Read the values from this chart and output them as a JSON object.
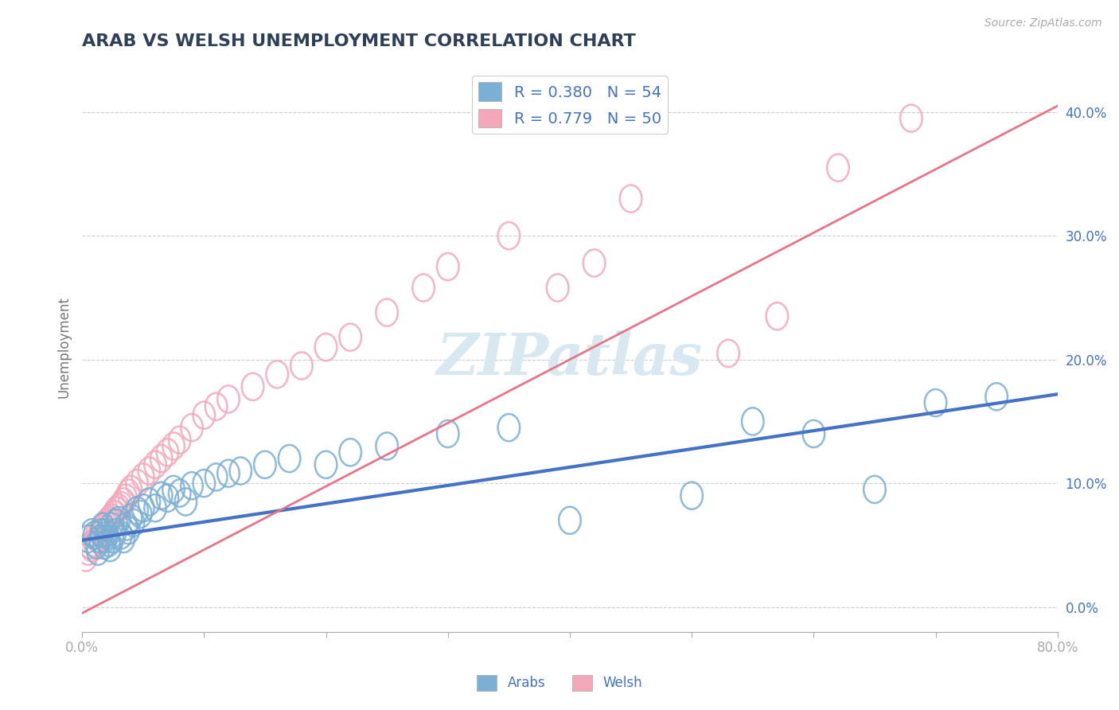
{
  "title": "ARAB VS WELSH UNEMPLOYMENT CORRELATION CHART",
  "source": "Source: ZipAtlas.com",
  "ylabel": "Unemployment",
  "ylabel_right_ticks": [
    "0.0%",
    "10.0%",
    "20.0%",
    "30.0%",
    "40.0%"
  ],
  "ylabel_right_vals": [
    0.0,
    0.1,
    0.2,
    0.3,
    0.4
  ],
  "xlim": [
    0.0,
    0.8
  ],
  "ylim": [
    -0.02,
    0.44
  ],
  "title_color": "#2E4057",
  "title_fontsize": 16,
  "arab_color": "#7BAFD4",
  "welsh_color": "#F4A7B9",
  "arab_line_color": "#4472C4",
  "welsh_line_color": "#E8748A",
  "legend_arab_label": "R = 0.380   N = 54",
  "legend_welsh_label": "R = 0.779   N = 50",
  "legend_text_color": "#4472C4",
  "background_color": "#FFFFFF",
  "grid_color": "#CCCCCC",
  "arab_x": [
    0.005,
    0.008,
    0.01,
    0.012,
    0.013,
    0.015,
    0.016,
    0.017,
    0.018,
    0.019,
    0.02,
    0.021,
    0.022,
    0.023,
    0.024,
    0.025,
    0.027,
    0.028,
    0.03,
    0.032,
    0.034,
    0.036,
    0.038,
    0.04,
    0.042,
    0.045,
    0.048,
    0.05,
    0.055,
    0.06,
    0.065,
    0.07,
    0.075,
    0.08,
    0.085,
    0.09,
    0.1,
    0.11,
    0.12,
    0.13,
    0.15,
    0.17,
    0.2,
    0.22,
    0.25,
    0.3,
    0.35,
    0.4,
    0.5,
    0.55,
    0.6,
    0.65,
    0.7,
    0.75
  ],
  "arab_y": [
    0.055,
    0.06,
    0.058,
    0.05,
    0.045,
    0.055,
    0.06,
    0.065,
    0.05,
    0.055,
    0.06,
    0.058,
    0.052,
    0.048,
    0.065,
    0.055,
    0.06,
    0.068,
    0.07,
    0.058,
    0.055,
    0.065,
    0.062,
    0.072,
    0.068,
    0.078,
    0.075,
    0.08,
    0.085,
    0.08,
    0.09,
    0.088,
    0.095,
    0.092,
    0.085,
    0.098,
    0.1,
    0.105,
    0.108,
    0.11,
    0.115,
    0.12,
    0.115,
    0.125,
    0.13,
    0.14,
    0.145,
    0.07,
    0.09,
    0.15,
    0.14,
    0.095,
    0.165,
    0.17
  ],
  "welsh_x": [
    0.003,
    0.005,
    0.007,
    0.008,
    0.01,
    0.012,
    0.013,
    0.015,
    0.016,
    0.018,
    0.02,
    0.022,
    0.024,
    0.025,
    0.026,
    0.028,
    0.03,
    0.032,
    0.034,
    0.036,
    0.038,
    0.04,
    0.045,
    0.05,
    0.055,
    0.06,
    0.065,
    0.07,
    0.075,
    0.08,
    0.09,
    0.1,
    0.11,
    0.12,
    0.14,
    0.16,
    0.18,
    0.2,
    0.22,
    0.25,
    0.28,
    0.3,
    0.35,
    0.39,
    0.42,
    0.45,
    0.53,
    0.57,
    0.62,
    0.68
  ],
  "welsh_y": [
    0.04,
    0.045,
    0.05,
    0.048,
    0.052,
    0.058,
    0.055,
    0.06,
    0.063,
    0.065,
    0.068,
    0.07,
    0.072,
    0.068,
    0.075,
    0.078,
    0.08,
    0.082,
    0.085,
    0.088,
    0.092,
    0.095,
    0.1,
    0.105,
    0.11,
    0.115,
    0.12,
    0.125,
    0.13,
    0.135,
    0.145,
    0.155,
    0.162,
    0.168,
    0.178,
    0.188,
    0.195,
    0.21,
    0.218,
    0.238,
    0.258,
    0.275,
    0.3,
    0.258,
    0.278,
    0.33,
    0.205,
    0.235,
    0.355,
    0.395
  ],
  "arab_line": [
    0.054,
    0.172
  ],
  "welsh_line": [
    -0.005,
    0.405
  ],
  "watermark_text": "ZIPatlas"
}
